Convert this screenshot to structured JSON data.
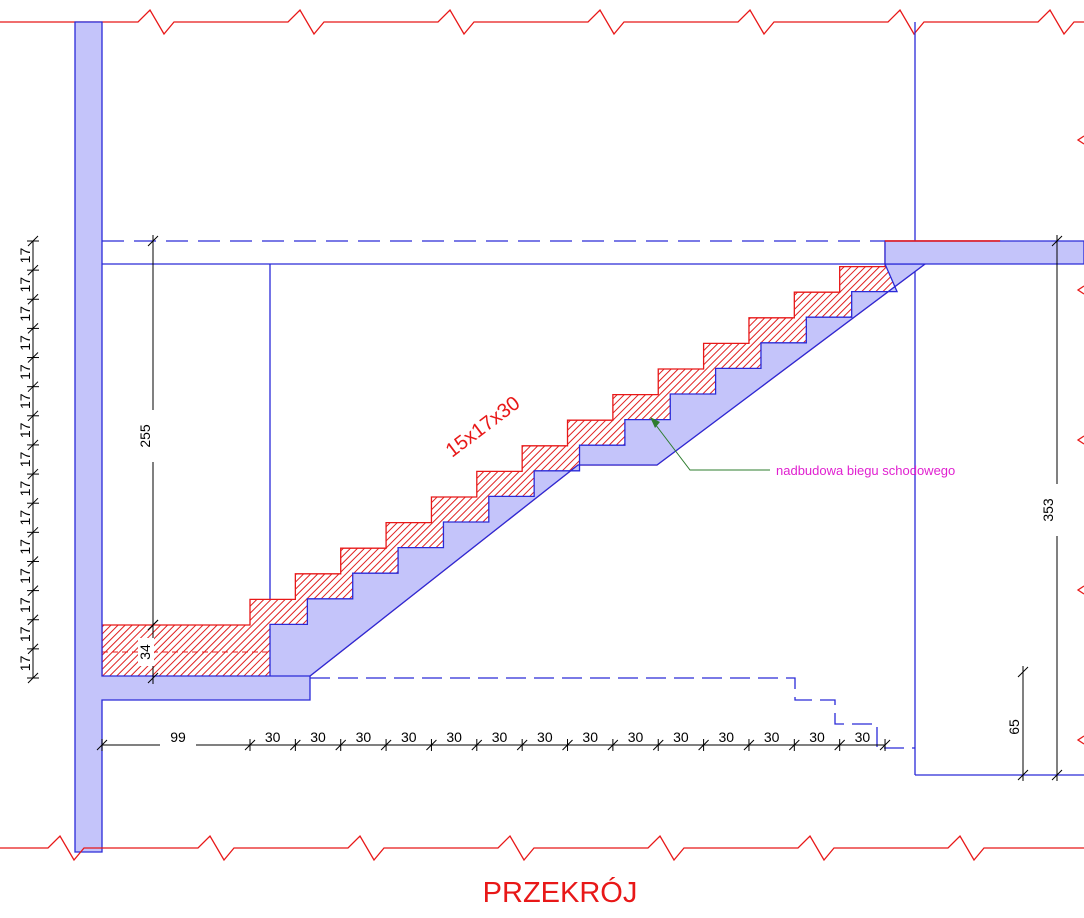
{
  "title": "PRZEKRÓJ",
  "stair_label": "15x17x30",
  "annotation": "nadbudowa biegu schodowego",
  "dimensions": {
    "flight_height": 255,
    "landing_buildup": 34,
    "total_height": 353,
    "floor_offset": 65,
    "landing_length": 99,
    "treads": [
      30,
      30,
      30,
      30,
      30,
      30,
      30,
      30,
      30,
      30,
      30,
      30,
      30,
      30
    ],
    "risers": [
      17,
      17,
      17,
      17,
      17,
      17,
      17,
      17,
      17,
      17,
      17,
      17,
      17,
      17,
      17
    ]
  }
}
